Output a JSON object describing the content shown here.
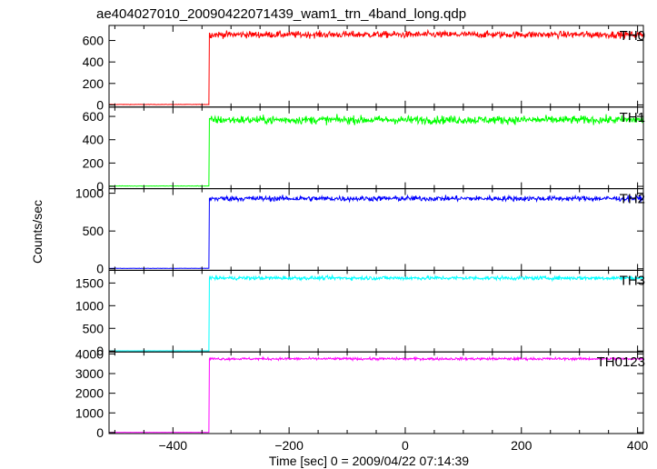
{
  "chart_data": {
    "type": "line",
    "title": "ae404027010_20090422071439_wam1_trn_4band_long.qdp",
    "xlabel": "Time [sec] 0 = 2009/04/22 07:14:39",
    "ylabel": "Counts/sec",
    "xlim": [
      -510,
      410
    ],
    "xticks": [
      -400,
      -200,
      0,
      200,
      400
    ],
    "step_time": -338,
    "panels": [
      {
        "name": "TH0",
        "color": "#ff0000",
        "ylim": [
          -20,
          740
        ],
        "yticks": [
          0,
          200,
          400,
          600
        ],
        "baseline": 4,
        "level": 655,
        "noise": 22
      },
      {
        "name": "TH1",
        "color": "#00ff00",
        "ylim": [
          -20,
          680
        ],
        "yticks": [
          0,
          200,
          400,
          600
        ],
        "baseline": 3,
        "level": 570,
        "noise": 25
      },
      {
        "name": "TH2",
        "color": "#0000ff",
        "ylim": [
          -20,
          1060
        ],
        "yticks": [
          0,
          500,
          1000
        ],
        "baseline": 6,
        "level": 930,
        "noise": 25
      },
      {
        "name": "TH3",
        "color": "#00ffff",
        "ylim": [
          -20,
          1780
        ],
        "yticks": [
          0,
          500,
          1000,
          1500
        ],
        "baseline": 5,
        "level": 1610,
        "noise": 30
      },
      {
        "name": "TH0123",
        "color": "#ff00ff",
        "ylim": [
          -50,
          4100
        ],
        "yticks": [
          0,
          1000,
          2000,
          3000,
          4000
        ],
        "baseline": 10,
        "level": 3750,
        "noise": 45
      }
    ]
  }
}
